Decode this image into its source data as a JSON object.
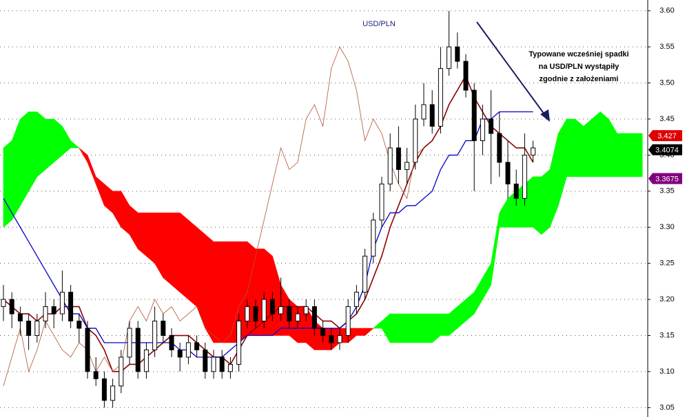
{
  "chart_data": {
    "type": "ichimoku",
    "title": "USD/PLN",
    "annotation": [
      "Typowane wcześniej spadki",
      "na USD/PLN wystąpiły",
      "zgodnie z założeniami"
    ],
    "ylim": [
      3.037,
      3.615
    ],
    "yticks": [
      {
        "value": 3.05,
        "label": "3.05"
      },
      {
        "value": 3.1,
        "label": "3.10"
      },
      {
        "value": 3.15,
        "label": "3.15"
      },
      {
        "value": 3.2,
        "label": "3.20"
      },
      {
        "value": 3.25,
        "label": "3.25"
      },
      {
        "value": 3.3,
        "label": "3.30"
      },
      {
        "value": 3.35,
        "label": "3.35"
      },
      {
        "value": 3.4,
        "label": "3.40"
      },
      {
        "value": 3.45,
        "label": "3.45"
      },
      {
        "value": 3.5,
        "label": "3.50"
      },
      {
        "value": 3.55,
        "label": "3.55"
      },
      {
        "value": 3.6,
        "label": "3.60"
      }
    ],
    "grid": true,
    "candles": {
      "open": [
        3.19,
        3.2,
        3.18,
        3.17,
        3.15,
        3.17,
        3.19,
        3.18,
        3.21,
        3.17,
        3.16,
        3.1,
        3.09,
        3.06,
        3.08,
        3.12,
        3.16,
        3.1,
        3.13,
        3.17,
        3.15,
        3.13,
        3.12,
        3.14,
        3.13,
        3.1,
        3.12,
        3.1,
        3.11,
        3.17,
        3.19,
        3.17,
        3.2,
        3.18,
        3.19,
        3.17,
        3.18,
        3.19,
        3.16,
        3.15,
        3.14,
        3.15,
        3.19,
        3.21,
        3.26,
        3.31,
        3.36,
        3.41,
        3.38,
        3.39,
        3.45,
        3.47,
        3.44,
        3.52,
        3.55,
        3.53,
        3.49,
        3.42,
        3.45,
        3.43,
        3.39,
        3.36,
        3.34,
        3.4
      ],
      "high": [
        3.22,
        3.21,
        3.19,
        3.18,
        3.18,
        3.21,
        3.2,
        3.24,
        3.22,
        3.18,
        3.17,
        3.12,
        3.1,
        3.09,
        3.13,
        3.17,
        3.17,
        3.14,
        3.19,
        3.18,
        3.16,
        3.14,
        3.15,
        3.15,
        3.14,
        3.13,
        3.13,
        3.12,
        3.18,
        3.2,
        3.2,
        3.21,
        3.21,
        3.23,
        3.2,
        3.19,
        3.2,
        3.2,
        3.17,
        3.16,
        3.16,
        3.2,
        3.22,
        3.27,
        3.32,
        3.37,
        3.43,
        3.44,
        3.41,
        3.47,
        3.5,
        3.49,
        3.55,
        3.6,
        3.57,
        3.54,
        3.5,
        3.47,
        3.49,
        3.46,
        3.42,
        3.38,
        3.43,
        3.42
      ],
      "low": [
        3.17,
        3.16,
        3.15,
        3.13,
        3.14,
        3.16,
        3.16,
        3.17,
        3.16,
        3.14,
        3.09,
        3.08,
        3.05,
        3.05,
        3.07,
        3.11,
        3.09,
        3.09,
        3.12,
        3.14,
        3.12,
        3.1,
        3.11,
        3.12,
        3.09,
        3.09,
        3.09,
        3.09,
        3.1,
        3.16,
        3.16,
        3.16,
        3.17,
        3.17,
        3.16,
        3.16,
        3.17,
        3.15,
        3.14,
        3.13,
        3.13,
        3.14,
        3.18,
        3.2,
        3.25,
        3.3,
        3.35,
        3.36,
        3.36,
        3.38,
        3.44,
        3.43,
        3.43,
        3.51,
        3.52,
        3.48,
        3.35,
        3.4,
        3.36,
        3.37,
        3.34,
        3.33,
        3.33,
        3.39
      ],
      "close": [
        3.2,
        3.18,
        3.17,
        3.15,
        3.17,
        3.19,
        3.18,
        3.21,
        3.17,
        3.16,
        3.1,
        3.09,
        3.06,
        3.08,
        3.12,
        3.16,
        3.1,
        3.13,
        3.17,
        3.15,
        3.13,
        3.12,
        3.14,
        3.13,
        3.1,
        3.12,
        3.1,
        3.11,
        3.17,
        3.19,
        3.17,
        3.2,
        3.18,
        3.19,
        3.17,
        3.18,
        3.19,
        3.16,
        3.15,
        3.14,
        3.15,
        3.19,
        3.21,
        3.26,
        3.31,
        3.36,
        3.41,
        3.38,
        3.39,
        3.45,
        3.47,
        3.44,
        3.52,
        3.55,
        3.53,
        3.49,
        3.42,
        3.45,
        3.43,
        3.39,
        3.36,
        3.34,
        3.4,
        3.41
      ]
    },
    "lines": [
      {
        "color": "#8b0000",
        "width": 1.6,
        "values": [
          3.2,
          3.19,
          3.18,
          3.18,
          3.17,
          3.18,
          3.18,
          3.19,
          3.19,
          3.19,
          3.16,
          3.15,
          3.13,
          3.1,
          3.1,
          3.11,
          3.11,
          3.12,
          3.13,
          3.14,
          3.15,
          3.15,
          3.15,
          3.14,
          3.13,
          3.12,
          3.12,
          3.11,
          3.13,
          3.15,
          3.16,
          3.17,
          3.18,
          3.19,
          3.19,
          3.19,
          3.19,
          3.18,
          3.17,
          3.17,
          3.16,
          3.17,
          3.18,
          3.2,
          3.23,
          3.26,
          3.3,
          3.33,
          3.36,
          3.39,
          3.41,
          3.42,
          3.44,
          3.47,
          3.49,
          3.51,
          3.48,
          3.46,
          3.44,
          3.43,
          3.42,
          3.41,
          3.41,
          3.39,
          null,
          null,
          null,
          null,
          null,
          null,
          null,
          null,
          null,
          null,
          null,
          null,
          null
        ]
      },
      {
        "color": "#0000cc",
        "width": 1.3,
        "values": [
          3.34,
          3.32,
          3.3,
          3.28,
          3.26,
          3.24,
          3.22,
          3.2,
          3.18,
          3.18,
          3.16,
          3.16,
          3.14,
          3.14,
          3.14,
          3.14,
          3.14,
          3.14,
          3.14,
          3.14,
          3.14,
          3.13,
          3.13,
          3.12,
          3.12,
          3.12,
          3.12,
          3.13,
          3.14,
          3.15,
          3.15,
          3.15,
          3.15,
          3.16,
          3.16,
          3.16,
          3.16,
          3.16,
          3.16,
          3.16,
          3.16,
          3.17,
          3.19,
          3.22,
          3.27,
          3.3,
          3.32,
          3.32,
          3.33,
          3.33,
          3.34,
          3.35,
          3.38,
          3.4,
          3.4,
          3.42,
          3.42,
          3.45,
          3.45,
          3.46,
          3.46,
          3.46,
          3.46,
          3.46,
          null,
          null,
          null,
          null,
          null,
          null,
          null,
          null,
          null,
          null,
          null,
          null,
          null
        ]
      },
      {
        "color": "#b0522d",
        "width": 0.8,
        "values": [
          3.08,
          3.12,
          3.16,
          3.1,
          3.13,
          3.17,
          3.15,
          3.13,
          3.12,
          3.14,
          3.13,
          3.1,
          3.12,
          3.1,
          3.11,
          3.17,
          3.19,
          3.17,
          3.2,
          3.18,
          3.19,
          3.17,
          3.18,
          3.19,
          3.16,
          3.15,
          3.14,
          3.15,
          3.19,
          3.21,
          3.26,
          3.31,
          3.36,
          3.41,
          3.38,
          3.39,
          3.45,
          3.47,
          3.44,
          3.52,
          3.55,
          3.53,
          3.49,
          3.42,
          3.45,
          3.43,
          3.39,
          3.36,
          3.34,
          3.4,
          3.41,
          null,
          null,
          null,
          null,
          null,
          null,
          null,
          null,
          null,
          null,
          null,
          null,
          null,
          null,
          null,
          null,
          null,
          null,
          null,
          null,
          null,
          null,
          null,
          null,
          null,
          null
        ]
      }
    ],
    "cloud": {
      "up_color": "#00ff00",
      "down_color": "#ff0000",
      "span_a": [
        3.41,
        3.42,
        3.45,
        3.46,
        3.46,
        3.45,
        3.45,
        3.44,
        3.42,
        3.41,
        3.39,
        3.36,
        3.33,
        3.32,
        3.3,
        3.29,
        3.27,
        3.26,
        3.25,
        3.23,
        3.22,
        3.21,
        3.2,
        3.19,
        3.16,
        3.14,
        3.14,
        3.14,
        3.14,
        3.15,
        3.15,
        3.15,
        3.15,
        3.15,
        3.15,
        3.14,
        3.14,
        3.13,
        3.13,
        3.13,
        3.14,
        3.14,
        3.15,
        3.15,
        3.16,
        3.17,
        3.18,
        3.18,
        3.18,
        3.18,
        3.18,
        3.18,
        3.18,
        3.18,
        3.19,
        3.2,
        3.21,
        3.23,
        3.25,
        3.32,
        3.34,
        3.35,
        3.36,
        3.37,
        3.37,
        3.38,
        3.43,
        3.45,
        3.45,
        3.44,
        3.45,
        3.46,
        3.45,
        3.43,
        3.43,
        3.43,
        3.43
      ],
      "span_b": [
        3.3,
        3.31,
        3.33,
        3.35,
        3.37,
        3.38,
        3.39,
        3.4,
        3.41,
        3.41,
        3.4,
        3.37,
        3.36,
        3.35,
        3.35,
        3.33,
        3.32,
        3.32,
        3.32,
        3.32,
        3.32,
        3.32,
        3.31,
        3.3,
        3.29,
        3.28,
        3.28,
        3.28,
        3.28,
        3.28,
        3.27,
        3.27,
        3.26,
        3.22,
        3.2,
        3.19,
        3.19,
        3.17,
        3.16,
        3.16,
        3.16,
        3.16,
        3.16,
        3.16,
        3.16,
        3.16,
        3.14,
        3.14,
        3.14,
        3.14,
        3.14,
        3.14,
        3.15,
        3.15,
        3.16,
        3.17,
        3.18,
        3.2,
        3.22,
        3.3,
        3.3,
        3.3,
        3.3,
        3.3,
        3.29,
        3.3,
        3.33,
        3.37,
        3.37,
        3.37,
        3.37,
        3.37,
        3.37,
        3.37,
        3.37,
        3.37,
        3.37
      ]
    },
    "price_labels": [
      {
        "value": 3.427,
        "color": "#e00000"
      },
      {
        "value": 3.4074,
        "color": "#000000"
      },
      {
        "value": 3.3675,
        "color": "#800080"
      }
    ]
  }
}
